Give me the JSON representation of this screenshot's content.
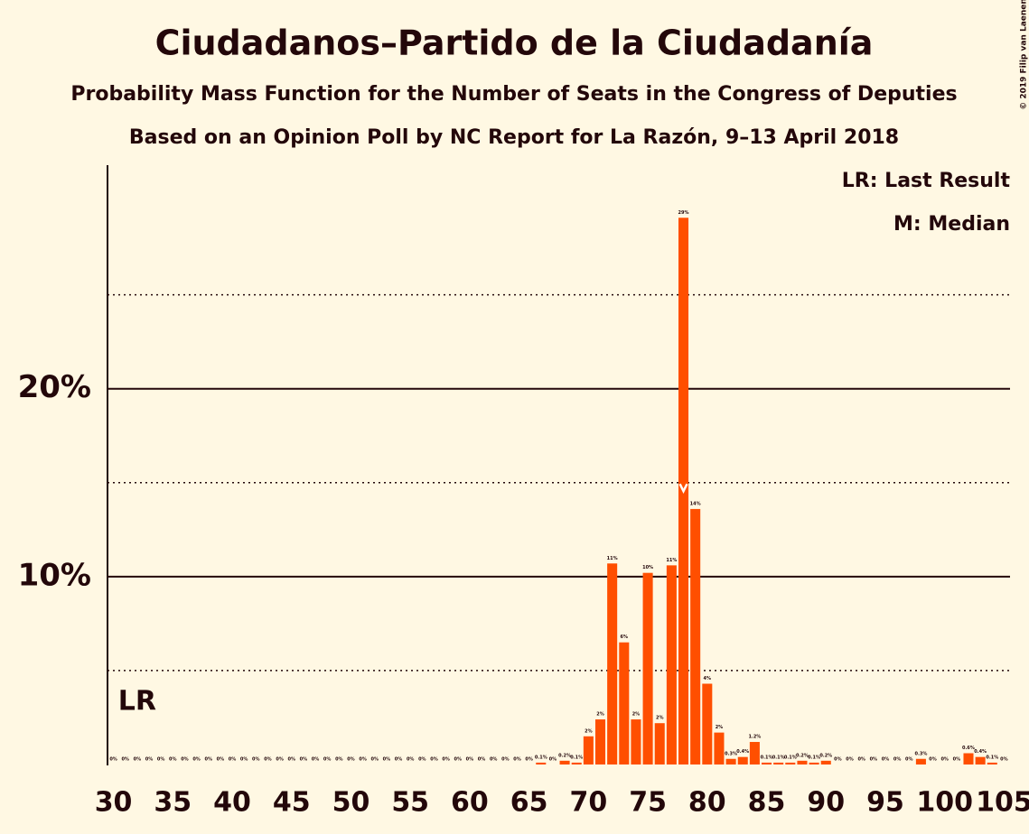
{
  "chart_data": {
    "type": "bar",
    "title": "Ciudadanos–Partido de la Ciudadanía",
    "subtitle": "Probability Mass Function for the Number of Seats in the Congress of Deputies",
    "subtitle2": "Based on an Opinion Poll by NC Report for La Razón, 9–13 April 2018",
    "legend": [
      "LR: Last Result",
      "M: Median"
    ],
    "last_result": 32,
    "last_result_label": "LR",
    "median": 78,
    "copyright": "© 2019 Filip van Laenen",
    "color": "#ff4f00",
    "x": [
      30,
      31,
      32,
      33,
      34,
      35,
      36,
      37,
      38,
      39,
      40,
      41,
      42,
      43,
      44,
      45,
      46,
      47,
      48,
      49,
      50,
      51,
      52,
      53,
      54,
      55,
      56,
      57,
      58,
      59,
      60,
      61,
      62,
      63,
      64,
      65,
      66,
      67,
      68,
      69,
      70,
      71,
      72,
      73,
      74,
      75,
      76,
      77,
      78,
      79,
      80,
      81,
      82,
      83,
      84,
      85,
      86,
      87,
      88,
      89,
      90,
      91,
      92,
      93,
      94,
      95,
      96,
      97,
      98,
      99,
      100,
      101,
      102,
      103,
      104,
      105
    ],
    "values": [
      0,
      0,
      0,
      0,
      0,
      0,
      0,
      0,
      0,
      0,
      0,
      0,
      0,
      0,
      0,
      0,
      0,
      0,
      0,
      0,
      0,
      0,
      0,
      0,
      0,
      0,
      0,
      0,
      0,
      0,
      0,
      0,
      0,
      0,
      0,
      0,
      0.1,
      0,
      0.2,
      0.1,
      1.5,
      2.4,
      10.7,
      6.5,
      2.4,
      10.2,
      2.2,
      10.6,
      29.1,
      13.6,
      4.3,
      1.7,
      0.3,
      0.4,
      1.2,
      0.1,
      0.1,
      0.1,
      0.2,
      0.1,
      0.2,
      0,
      0,
      0,
      0,
      0,
      0,
      0,
      0.3,
      0,
      0,
      0,
      0.6,
      0.4,
      0.1,
      0
    ],
    "value_labels": [
      "0%",
      "0%",
      "0%",
      "0%",
      "0%",
      "0%",
      "0%",
      "0%",
      "0%",
      "0%",
      "0%",
      "0%",
      "0%",
      "0%",
      "0%",
      "0%",
      "0%",
      "0%",
      "0%",
      "0%",
      "0%",
      "0%",
      "0%",
      "0%",
      "0%",
      "0%",
      "0%",
      "0%",
      "0%",
      "0%",
      "0%",
      "0%",
      "0%",
      "0%",
      "0%",
      "0%",
      "0.1%",
      "0%",
      "0.2%",
      "0.1%",
      "2%",
      "2%",
      "11%",
      "6%",
      "2%",
      "10%",
      "2%",
      "11%",
      "29%",
      "14%",
      "4%",
      "2%",
      "0.3%",
      "0.4%",
      "1.2%",
      "0.1%",
      "0.1%",
      "0.1%",
      "0.2%",
      "0.1%",
      "0.2%",
      "0%",
      "0%",
      "0%",
      "0%",
      "0%",
      "0%",
      "0%",
      "0.3%",
      "0%",
      "0%",
      "0%",
      "0.6%",
      "0.4%",
      "0.1%",
      "0%"
    ],
    "xlim": [
      29.5,
      105.5
    ],
    "xticks": [
      30,
      35,
      40,
      45,
      50,
      55,
      60,
      65,
      70,
      75,
      80,
      85,
      90,
      95,
      100,
      105
    ],
    "ylim": [
      0,
      31.9
    ],
    "yticks": [
      {
        "value": 10,
        "label": "10%"
      },
      {
        "value": 20,
        "label": "20%"
      }
    ],
    "minor_yticks": [
      5,
      15,
      25
    ],
    "grid": true
  }
}
